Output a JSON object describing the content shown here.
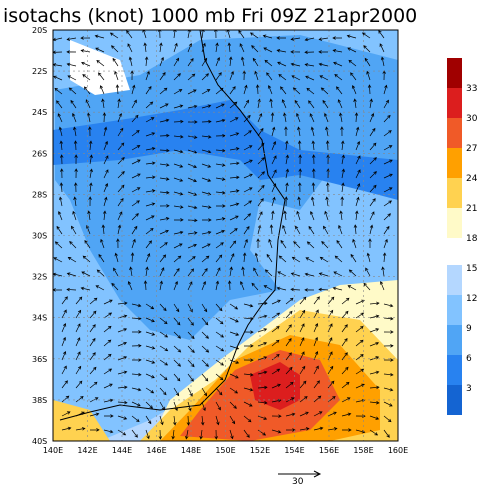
{
  "title": "isotachs (knot) 1000 mb Fri 09Z 21apr2000",
  "lat_labels": [
    "20S",
    "22S",
    "24S",
    "26S",
    "28S",
    "30S",
    "32S",
    "34S",
    "36S",
    "38S",
    "40S"
  ],
  "lon_labels": [
    "140E",
    "142E",
    "144E",
    "146E",
    "148E",
    "150E",
    "152E",
    "154E",
    "156E",
    "158E",
    "160E"
  ],
  "colorbar": {
    "warm": {
      "labels": [
        33,
        30,
        27,
        24,
        21,
        18
      ],
      "colors": [
        "#a00000",
        "#dc1e1e",
        "#f05a28",
        "#ffa000",
        "#ffd250",
        "#fffac8"
      ]
    },
    "cool": {
      "labels": [
        15,
        12,
        9,
        6,
        3
      ],
      "colors": [
        "#b4d7ff",
        "#82c3ff",
        "#50a5f5",
        "#2882f0",
        "#1464d2"
      ]
    }
  },
  "reference_vector": "30"
}
